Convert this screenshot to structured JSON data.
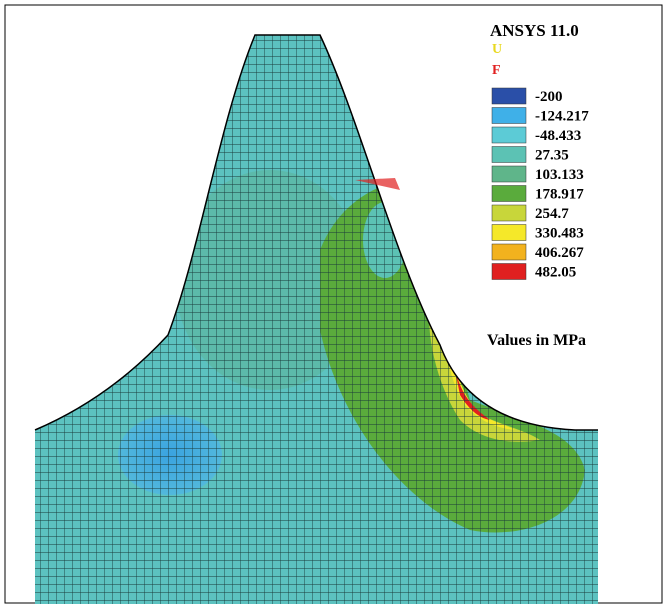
{
  "header": {
    "title": "ANSYS 11.0",
    "u_label": "U",
    "f_label": "F"
  },
  "legend": {
    "items": [
      {
        "label": "-200",
        "color": "#2a4fa8"
      },
      {
        "label": "-124.217",
        "color": "#3fb0e8"
      },
      {
        "label": "-48.433",
        "color": "#5ccbd6"
      },
      {
        "label": "27.35",
        "color": "#5cc2b4"
      },
      {
        "label": "103.133",
        "color": "#5fb58a"
      },
      {
        "label": "178.917",
        "color": "#5aab3c"
      },
      {
        "label": "254.7",
        "color": "#c8d63a"
      },
      {
        "label": "330.483",
        "color": "#f5e829"
      },
      {
        "label": "406.267",
        "color": "#f2b21e"
      },
      {
        "label": "482.05",
        "color": "#e02020"
      }
    ]
  },
  "note": "Values in MPa"
}
